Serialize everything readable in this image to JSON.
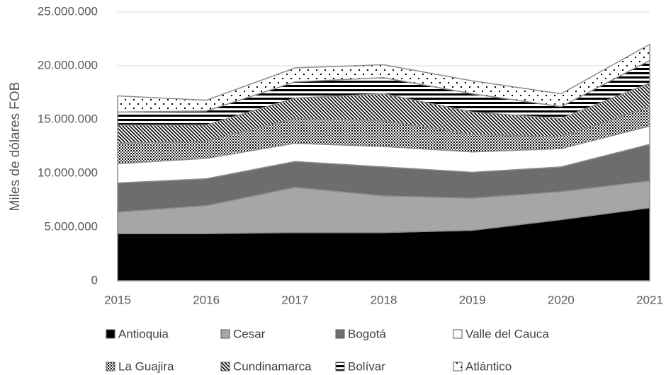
{
  "chart_data": {
    "type": "stacked-area",
    "y_label": "Miles de dólares FOB",
    "categories": [
      "2015",
      "2016",
      "2017",
      "2018",
      "2019",
      "2020",
      "2021"
    ],
    "series": [
      {
        "name": "Antioquia",
        "color": "#000000",
        "pattern": "solid",
        "values": [
          4400000,
          4400000,
          4500000,
          4500000,
          4700000,
          5700000,
          6800000
        ]
      },
      {
        "name": "Cesar",
        "color": "#a6a6a6",
        "pattern": "solid",
        "values": [
          2000000,
          2600000,
          4200000,
          3400000,
          3000000,
          2600000,
          2500000
        ]
      },
      {
        "name": "Bogotá",
        "color": "#6d6d6d",
        "pattern": "solid",
        "values": [
          2700000,
          2500000,
          2400000,
          2700000,
          2400000,
          2300000,
          3400000
        ]
      },
      {
        "name": "Valle del Cauca",
        "color": "#ffffff",
        "pattern": "solid",
        "values": [
          1800000,
          1900000,
          1700000,
          1900000,
          1900000,
          1700000,
          1700000
        ]
      },
      {
        "name": "La Guajira",
        "color": "#000000",
        "pattern": "grid-dots",
        "values": [
          1900000,
          1600000,
          2300000,
          2400000,
          1600000,
          1100000,
          1800000
        ]
      },
      {
        "name": "Cundinamarca",
        "color": "#000000",
        "pattern": "diagonal",
        "values": [
          1700000,
          1500000,
          1900000,
          2500000,
          2100000,
          1700000,
          2200000
        ]
      },
      {
        "name": "Bolívar",
        "color": "#000000",
        "pattern": "horizontal",
        "values": [
          1200000,
          1300000,
          1500000,
          1500000,
          1700000,
          1100000,
          2100000
        ]
      },
      {
        "name": "Atlántico",
        "color": "#000000",
        "pattern": "dots",
        "values": [
          1500000,
          1000000,
          1300000,
          1200000,
          1200000,
          1200000,
          1500000
        ]
      }
    ],
    "ylim": [
      0,
      25000000
    ],
    "yticks": [
      0,
      {
        "value": 5000000,
        "label": "5.000.000"
      },
      {
        "value": 10000000,
        "label": "10.000.000"
      },
      {
        "value": 15000000,
        "label": "15.000.000"
      },
      {
        "value": 20000000,
        "label": "20.000.000"
      },
      {
        "value": 25000000,
        "label": "25.000.000"
      }
    ],
    "grid": true
  }
}
